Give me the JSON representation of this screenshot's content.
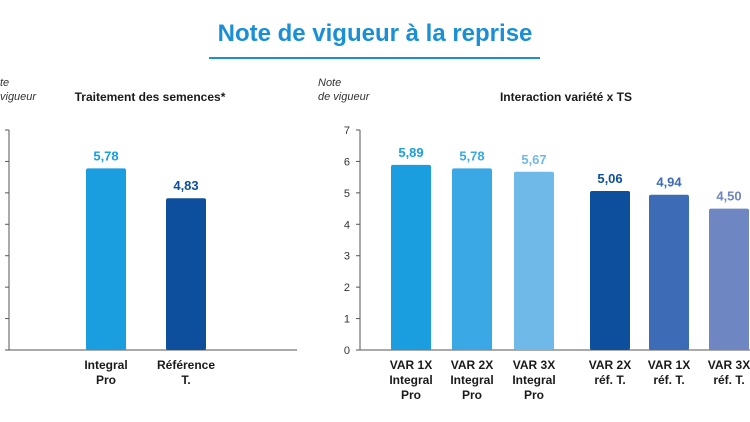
{
  "title": "Note de vigueur à la reprise",
  "chart_data": [
    {
      "type": "bar",
      "title": "Traitement des semences*",
      "ylabel": [
        "te",
        "vigueur"
      ],
      "categories": [
        [
          "Integral",
          "Pro"
        ],
        [
          "Référence",
          "T."
        ]
      ],
      "values": [
        5.78,
        4.83
      ],
      "value_labels": [
        "5,78",
        "4,83"
      ],
      "colors": [
        "#1a9ee0",
        "#0d4f9c"
      ],
      "ylim": [
        0,
        7
      ],
      "grid": false
    },
    {
      "type": "bar",
      "title": "Interaction variété x TS",
      "ylabel": [
        "Note",
        "de vigueur"
      ],
      "yticks": [
        "0",
        "1",
        "2",
        "3",
        "4",
        "5",
        "6",
        "7"
      ],
      "categories": [
        [
          "VAR 1X",
          "Integral",
          "Pro"
        ],
        [
          "VAR 2X",
          "Integral",
          "Pro"
        ],
        [
          "VAR 3X",
          "Integral",
          "Pro"
        ],
        [
          "VAR 2X",
          "réf. T."
        ],
        [
          "VAR 1X",
          "réf. T."
        ],
        [
          "VAR 3X",
          "réf. T."
        ]
      ],
      "values": [
        5.89,
        5.78,
        5.67,
        5.06,
        4.94,
        4.5
      ],
      "value_labels": [
        "5,89",
        "5,78",
        "5,67",
        "5,06",
        "4,94",
        "4,50"
      ],
      "colors": [
        "#1a9ee0",
        "#3aa8e4",
        "#6fb9e8",
        "#0d4f9c",
        "#3d6bb5",
        "#6e86c2"
      ],
      "ylim": [
        0,
        7
      ],
      "grid": false
    }
  ]
}
